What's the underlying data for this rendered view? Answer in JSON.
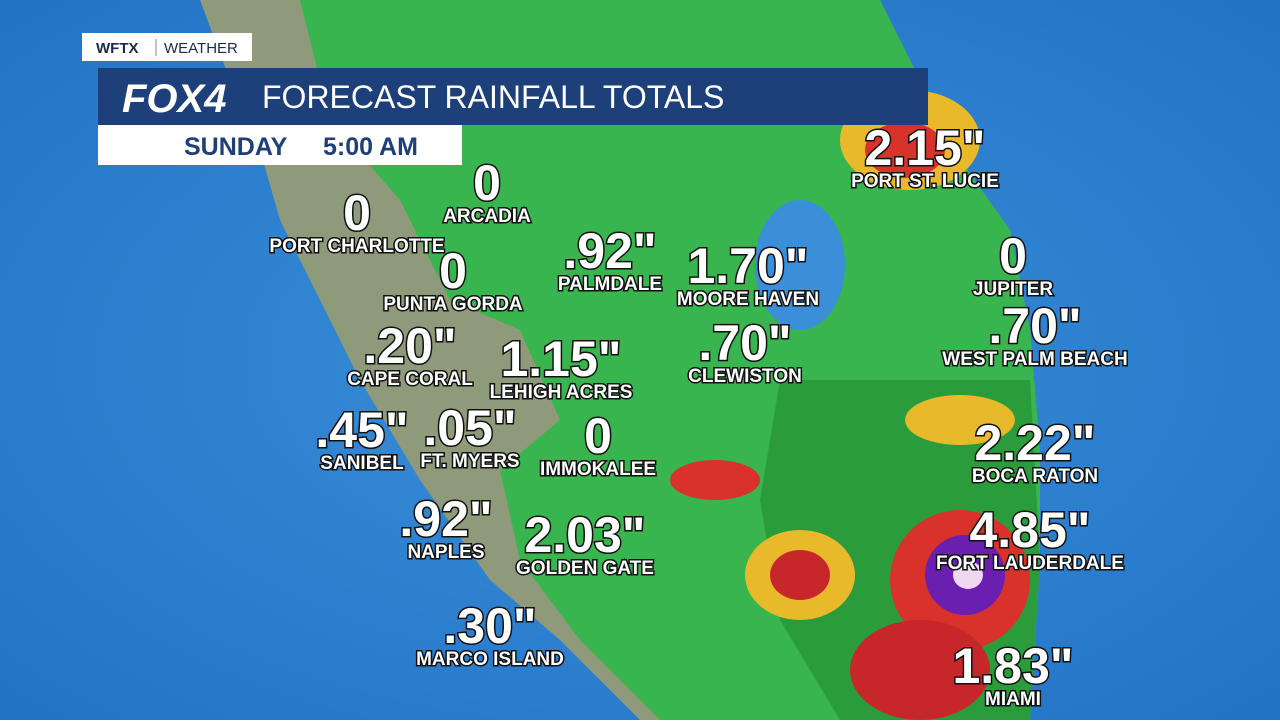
{
  "header": {
    "station": "WFTX",
    "section": "WEATHER",
    "logo": "FOX4",
    "title": "FORECAST RAINFALL TOTALS",
    "day": "SUNDAY",
    "time": "5:00 AM"
  },
  "cities": [
    {
      "value": "2.15\"",
      "name": "PORT ST. LUCIE"
    },
    {
      "value": "0",
      "name": "ARCADIA"
    },
    {
      "value": "0",
      "name": "PORT CHARLOTTE"
    },
    {
      "value": ".92\"",
      "name": "PALMDALE"
    },
    {
      "value": "1.70\"",
      "name": "MOORE HAVEN"
    },
    {
      "value": "0",
      "name": "JUPITER"
    },
    {
      "value": "0",
      "name": "PUNTA GORDA"
    },
    {
      "value": ".70\"",
      "name": "WEST PALM BEACH"
    },
    {
      "value": ".20\"",
      "name": "CAPE CORAL"
    },
    {
      "value": "1.15\"",
      "name": "LEHIGH ACRES"
    },
    {
      "value": ".70\"",
      "name": "CLEWISTON"
    },
    {
      "value": ".45\"",
      "name": "SANIBEL"
    },
    {
      "value": ".05\"",
      "name": "FT. MYERS"
    },
    {
      "value": "0",
      "name": "IMMOKALEE"
    },
    {
      "value": "2.22\"",
      "name": "BOCA RATON"
    },
    {
      "value": ".92\"",
      "name": "NAPLES"
    },
    {
      "value": "2.03\"",
      "name": "GOLDEN GATE"
    },
    {
      "value": "4.85\"",
      "name": "FORT LAUDERDALE"
    },
    {
      "value": ".30\"",
      "name": "MARCO ISLAND"
    },
    {
      "value": "1.83\"",
      "name": "MIAMI"
    }
  ]
}
